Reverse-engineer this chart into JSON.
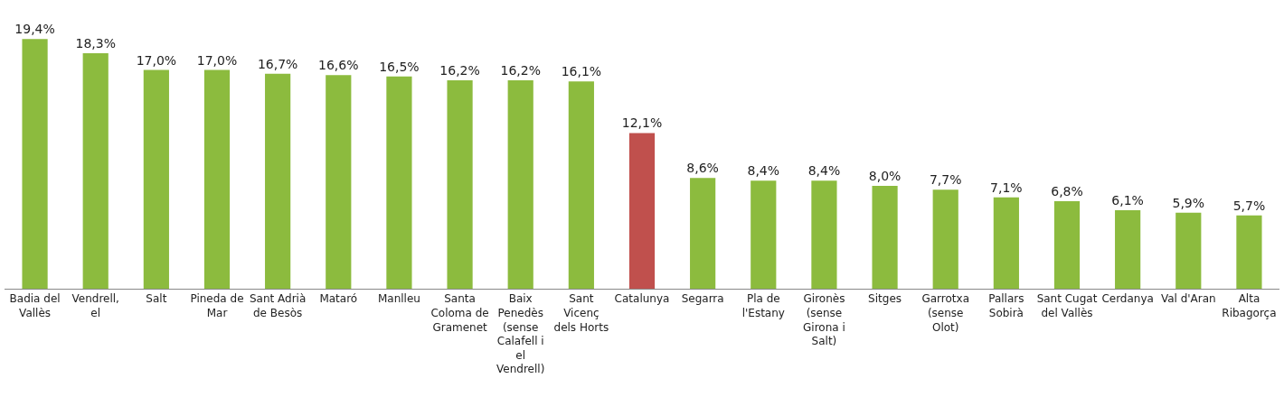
{
  "chart_data": {
    "type": "bar",
    "categories": [
      "Badia del Vallès",
      "Vendrell, el",
      "Salt",
      "Pineda de Mar",
      "Sant Adrià de Besòs",
      "Mataró",
      "Manlleu",
      "Santa Coloma de Gramenet",
      "Baix Penedès (sense Calafell i el Vendrell)",
      "Sant Vicenç dels Horts",
      "Catalunya",
      "Segarra",
      "Pla de l'Estany",
      "Gironès (sense Girona i Salt)",
      "Sitges",
      "Garrotxa (sense Olot)",
      "Pallars Sobirà",
      "Sant Cugat del Vallès",
      "Cerdanya",
      "Val d'Aran",
      "Alta Ribagorça"
    ],
    "values": [
      19.4,
      18.3,
      17.0,
      17.0,
      16.7,
      16.6,
      16.5,
      16.2,
      16.2,
      16.1,
      12.1,
      8.6,
      8.4,
      8.4,
      8.0,
      7.7,
      7.1,
      6.8,
      6.1,
      5.9,
      5.7
    ],
    "value_labels": [
      "19,4%",
      "18,3%",
      "17,0%",
      "17,0%",
      "16,7%",
      "16,6%",
      "16,5%",
      "16,2%",
      "16,2%",
      "16,1%",
      "12,1%",
      "8,6%",
      "8,4%",
      "8,4%",
      "8,0%",
      "7,7%",
      "7,1%",
      "6,8%",
      "6,1%",
      "5,9%",
      "5,7%"
    ],
    "colors": [
      "#8cbb3e",
      "#8cbb3e",
      "#8cbb3e",
      "#8cbb3e",
      "#8cbb3e",
      "#8cbb3e",
      "#8cbb3e",
      "#8cbb3e",
      "#8cbb3e",
      "#8cbb3e",
      "#c0504d",
      "#8cbb3e",
      "#8cbb3e",
      "#8cbb3e",
      "#8cbb3e",
      "#8cbb3e",
      "#8cbb3e",
      "#8cbb3e",
      "#8cbb3e",
      "#8cbb3e",
      "#8cbb3e"
    ],
    "legend": false
  }
}
